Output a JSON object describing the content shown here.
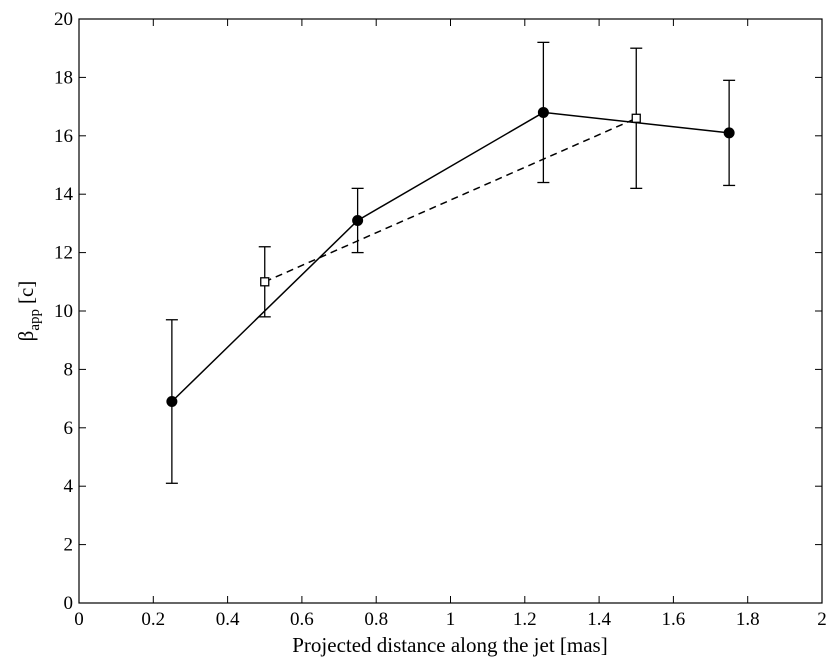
{
  "chart_data": {
    "type": "line",
    "title": "",
    "xlabel": "Projected distance along the jet [mas]",
    "ylabel": {
      "symbol": "β",
      "subscript": "app",
      "unit": "[c]"
    },
    "xlim": [
      0,
      2
    ],
    "ylim": [
      0,
      20
    ],
    "xticks": [
      0,
      0.2,
      0.4,
      0.6,
      0.8,
      1,
      1.2,
      1.4,
      1.6,
      1.8,
      2
    ],
    "xtick_labels": [
      "0",
      "0.2",
      "0.4",
      "0.6",
      "0.8",
      "1",
      "1.2",
      "1.4",
      "1.6",
      "1.8",
      "2"
    ],
    "yticks": [
      0,
      2,
      4,
      6,
      8,
      10,
      12,
      14,
      16,
      18,
      20
    ],
    "ytick_labels": [
      "0",
      "2",
      "4",
      "6",
      "8",
      "10",
      "12",
      "14",
      "16",
      "18",
      "20"
    ],
    "grid": false,
    "legend": "none",
    "series": [
      {
        "line": "solid",
        "marker": "filled-circle",
        "color": "#000000",
        "points": [
          {
            "x": 0.25,
            "y": 6.9,
            "err_low": 4.1,
            "err_high": 9.7
          },
          {
            "x": 0.75,
            "y": 13.1,
            "err_low": 12.0,
            "err_high": 14.2
          },
          {
            "x": 1.25,
            "y": 16.8,
            "err_low": 14.4,
            "err_high": 19.2
          },
          {
            "x": 1.75,
            "y": 16.1,
            "err_low": 14.3,
            "err_high": 17.9
          }
        ]
      },
      {
        "line": "dashed",
        "marker": "open-square",
        "color": "#000000",
        "points": [
          {
            "x": 0.5,
            "y": 11.0,
            "err_low": 9.8,
            "err_high": 12.2
          },
          {
            "x": 1.5,
            "y": 16.6,
            "err_low": 14.2,
            "err_high": 19.0
          }
        ]
      }
    ]
  }
}
